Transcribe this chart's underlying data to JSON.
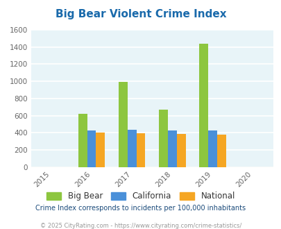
{
  "title": "Big Bear Violent Crime Index",
  "title_color": "#1a6aab",
  "years": [
    2015,
    2016,
    2017,
    2018,
    2019,
    2020
  ],
  "categories": [
    "Big Bear",
    "California",
    "National"
  ],
  "values": {
    "Big Bear": [
      0,
      620,
      995,
      670,
      1435,
      0
    ],
    "California": [
      0,
      430,
      435,
      430,
      430,
      0
    ],
    "National": [
      0,
      400,
      398,
      385,
      382,
      0
    ]
  },
  "colors": {
    "Big Bear": "#8dc63f",
    "California": "#4a90d9",
    "National": "#f5a623"
  },
  "ylim": [
    0,
    1600
  ],
  "yticks": [
    0,
    200,
    400,
    600,
    800,
    1000,
    1200,
    1400,
    1600
  ],
  "plot_bg_color": "#e8f4f8",
  "grid_color": "#ffffff",
  "bar_width": 0.22,
  "legend_note": "Crime Index corresponds to incidents per 100,000 inhabitants",
  "copyright": "© 2025 CityRating.com - https://www.cityrating.com/crime-statistics/",
  "legend_text_color": "#333333",
  "note_color": "#1a4a7a",
  "copyright_color": "#999999"
}
